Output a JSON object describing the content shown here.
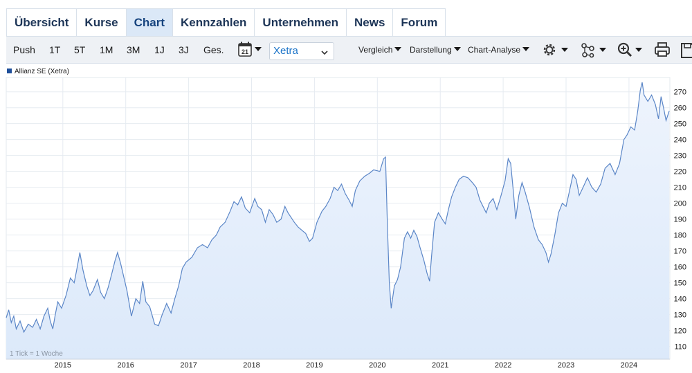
{
  "tabs": [
    {
      "label": "Übersicht"
    },
    {
      "label": "Kurse"
    },
    {
      "label": "Chart"
    },
    {
      "label": "Kennzahlen"
    },
    {
      "label": "Unternehmen"
    },
    {
      "label": "News"
    },
    {
      "label": "Forum"
    }
  ],
  "toolbar": {
    "ranges": [
      "Push",
      "1T",
      "5T",
      "1M",
      "3M",
      "1J",
      "3J",
      "Ges."
    ],
    "calendar_day": "21",
    "exchange": "Xetra",
    "compare": "Vergleich",
    "display": "Darstellung",
    "analysis": "Chart-Analyse",
    "icons": [
      "gear-icon",
      "network-icon",
      "zoom-in-icon",
      "print-icon",
      "save-icon"
    ]
  },
  "chart_data": {
    "type": "area",
    "series": [
      {
        "name": "Allianz SE (Xetra)",
        "color": "#5b86c7",
        "fill": "#dce9fa"
      }
    ],
    "footnote": "1 Tick = 1 Woche",
    "y_ticks": [
      110,
      120,
      130,
      140,
      150,
      160,
      170,
      180,
      190,
      200,
      210,
      220,
      230,
      240,
      250,
      260,
      270
    ],
    "x_ticks": [
      "2015",
      "2016",
      "2017",
      "2018",
      "2019",
      "2020",
      "2021",
      "2022",
      "2023",
      "2024"
    ],
    "ylim": [
      102,
      279
    ],
    "xlim": [
      2014.1,
      2024.65
    ],
    "grid": true,
    "points": [
      [
        2014.1,
        128
      ],
      [
        2014.14,
        133
      ],
      [
        2014.18,
        125
      ],
      [
        2014.22,
        129
      ],
      [
        2014.26,
        121
      ],
      [
        2014.32,
        126
      ],
      [
        2014.38,
        119
      ],
      [
        2014.45,
        124
      ],
      [
        2014.52,
        122
      ],
      [
        2014.58,
        127
      ],
      [
        2014.64,
        121
      ],
      [
        2014.7,
        129
      ],
      [
        2014.76,
        134
      ],
      [
        2014.8,
        126
      ],
      [
        2014.84,
        121
      ],
      [
        2014.88,
        130
      ],
      [
        2014.92,
        138
      ],
      [
        2014.98,
        134
      ],
      [
        2015.05,
        142
      ],
      [
        2015.12,
        153
      ],
      [
        2015.18,
        150
      ],
      [
        2015.22,
        158
      ],
      [
        2015.27,
        169
      ],
      [
        2015.32,
        158
      ],
      [
        2015.38,
        148
      ],
      [
        2015.43,
        142
      ],
      [
        2015.48,
        145
      ],
      [
        2015.55,
        152
      ],
      [
        2015.6,
        144
      ],
      [
        2015.66,
        140
      ],
      [
        2015.72,
        147
      ],
      [
        2015.78,
        156
      ],
      [
        2015.83,
        164
      ],
      [
        2015.87,
        169
      ],
      [
        2015.92,
        162
      ],
      [
        2016.02,
        145
      ],
      [
        2016.09,
        129
      ],
      [
        2016.16,
        140
      ],
      [
        2016.22,
        137
      ],
      [
        2016.27,
        151
      ],
      [
        2016.32,
        138
      ],
      [
        2016.38,
        135
      ],
      [
        2016.46,
        124
      ],
      [
        2016.52,
        123
      ],
      [
        2016.58,
        130
      ],
      [
        2016.65,
        137
      ],
      [
        2016.72,
        131
      ],
      [
        2016.78,
        140
      ],
      [
        2016.84,
        148
      ],
      [
        2016.9,
        159
      ],
      [
        2016.96,
        163
      ],
      [
        2017.05,
        166
      ],
      [
        2017.14,
        172
      ],
      [
        2017.22,
        174
      ],
      [
        2017.3,
        172
      ],
      [
        2017.37,
        177
      ],
      [
        2017.44,
        180
      ],
      [
        2017.5,
        185
      ],
      [
        2017.58,
        188
      ],
      [
        2017.66,
        195
      ],
      [
        2017.72,
        201
      ],
      [
        2017.78,
        199
      ],
      [
        2017.84,
        204
      ],
      [
        2017.9,
        197
      ],
      [
        2017.97,
        194
      ],
      [
        2018.05,
        203
      ],
      [
        2018.1,
        198
      ],
      [
        2018.16,
        196
      ],
      [
        2018.22,
        188
      ],
      [
        2018.28,
        196
      ],
      [
        2018.34,
        193
      ],
      [
        2018.4,
        188
      ],
      [
        2018.47,
        190
      ],
      [
        2018.53,
        198
      ],
      [
        2018.58,
        194
      ],
      [
        2018.63,
        191
      ],
      [
        2018.68,
        188
      ],
      [
        2018.74,
        185
      ],
      [
        2018.8,
        183
      ],
      [
        2018.86,
        181
      ],
      [
        2018.92,
        176
      ],
      [
        2018.97,
        178
      ],
      [
        2019.04,
        188
      ],
      [
        2019.12,
        195
      ],
      [
        2019.18,
        198
      ],
      [
        2019.25,
        203
      ],
      [
        2019.31,
        210
      ],
      [
        2019.37,
        208
      ],
      [
        2019.43,
        212
      ],
      [
        2019.49,
        206
      ],
      [
        2019.55,
        202
      ],
      [
        2019.6,
        198
      ],
      [
        2019.65,
        208
      ],
      [
        2019.72,
        214
      ],
      [
        2019.8,
        217
      ],
      [
        2019.88,
        219
      ],
      [
        2019.94,
        221
      ],
      [
        2020.04,
        220
      ],
      [
        2020.1,
        228
      ],
      [
        2020.13,
        229
      ],
      [
        2020.16,
        185
      ],
      [
        2020.19,
        150
      ],
      [
        2020.22,
        134
      ],
      [
        2020.27,
        148
      ],
      [
        2020.32,
        152
      ],
      [
        2020.37,
        160
      ],
      [
        2020.43,
        178
      ],
      [
        2020.48,
        182
      ],
      [
        2020.53,
        178
      ],
      [
        2020.58,
        183
      ],
      [
        2020.63,
        179
      ],
      [
        2020.68,
        172
      ],
      [
        2020.74,
        164
      ],
      [
        2020.79,
        156
      ],
      [
        2020.83,
        151
      ],
      [
        2020.86,
        166
      ],
      [
        2020.91,
        188
      ],
      [
        2020.97,
        194
      ],
      [
        2021.03,
        190
      ],
      [
        2021.08,
        187
      ],
      [
        2021.13,
        196
      ],
      [
        2021.18,
        204
      ],
      [
        2021.24,
        210
      ],
      [
        2021.3,
        215
      ],
      [
        2021.37,
        217
      ],
      [
        2021.44,
        216
      ],
      [
        2021.51,
        213
      ],
      [
        2021.57,
        210
      ],
      [
        2021.63,
        202
      ],
      [
        2021.68,
        198
      ],
      [
        2021.73,
        194
      ],
      [
        2021.78,
        200
      ],
      [
        2021.84,
        203
      ],
      [
        2021.9,
        196
      ],
      [
        2021.96,
        204
      ],
      [
        2022.03,
        214
      ],
      [
        2022.08,
        228
      ],
      [
        2022.12,
        225
      ],
      [
        2022.16,
        208
      ],
      [
        2022.2,
        190
      ],
      [
        2022.25,
        205
      ],
      [
        2022.3,
        213
      ],
      [
        2022.35,
        207
      ],
      [
        2022.42,
        197
      ],
      [
        2022.49,
        185
      ],
      [
        2022.56,
        177
      ],
      [
        2022.62,
        174
      ],
      [
        2022.68,
        169
      ],
      [
        2022.72,
        163
      ],
      [
        2022.76,
        168
      ],
      [
        2022.82,
        180
      ],
      [
        2022.88,
        194
      ],
      [
        2022.94,
        200
      ],
      [
        2023.0,
        198
      ],
      [
        2023.05,
        207
      ],
      [
        2023.11,
        218
      ],
      [
        2023.16,
        215
      ],
      [
        2023.21,
        205
      ],
      [
        2023.27,
        210
      ],
      [
        2023.34,
        216
      ],
      [
        2023.41,
        210
      ],
      [
        2023.48,
        207
      ],
      [
        2023.55,
        212
      ],
      [
        2023.62,
        222
      ],
      [
        2023.7,
        225
      ],
      [
        2023.78,
        218
      ],
      [
        2023.85,
        225
      ],
      [
        2023.92,
        240
      ],
      [
        2023.97,
        243
      ],
      [
        2024.03,
        248
      ],
      [
        2024.09,
        246
      ],
      [
        2024.14,
        258
      ],
      [
        2024.18,
        271
      ],
      [
        2024.21,
        276
      ],
      [
        2024.24,
        268
      ],
      [
        2024.3,
        264
      ],
      [
        2024.36,
        268
      ],
      [
        2024.42,
        262
      ],
      [
        2024.47,
        253
      ],
      [
        2024.51,
        267
      ],
      [
        2024.55,
        260
      ],
      [
        2024.59,
        252
      ],
      [
        2024.64,
        258
      ]
    ]
  }
}
